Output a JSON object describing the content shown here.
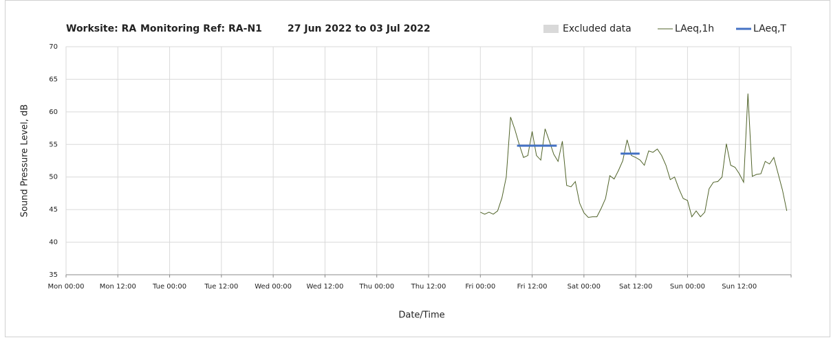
{
  "chart_data": {
    "type": "line",
    "title": [
      "Worksite: RA",
      "Monitoring Ref: RA-N1",
      "27 Jun 2022 to 03 Jul 2022"
    ],
    "x_label": "Date/Time",
    "y_label": "Sound Pressure Level, dB",
    "xlim": [
      0,
      168
    ],
    "xticks": [
      {
        "value": 0,
        "label": "Mon 00:00"
      },
      {
        "value": 12,
        "label": "Mon 12:00"
      },
      {
        "value": 24,
        "label": "Tue 00:00"
      },
      {
        "value": 36,
        "label": "Tue 12:00"
      },
      {
        "value": 48,
        "label": "Wed 00:00"
      },
      {
        "value": 60,
        "label": "Wed 12:00"
      },
      {
        "value": 72,
        "label": "Thu 00:00"
      },
      {
        "value": 84,
        "label": "Thu 12:00"
      },
      {
        "value": 96,
        "label": "Fri 00:00"
      },
      {
        "value": 108,
        "label": "Fri 12:00"
      },
      {
        "value": 120,
        "label": "Sat 00:00"
      },
      {
        "value": 132,
        "label": "Sat 12:00"
      },
      {
        "value": 144,
        "label": "Sun 00:00"
      },
      {
        "value": 156,
        "label": "Sun 12:00"
      }
    ],
    "ylim": [
      35,
      70
    ],
    "yticks": [
      35,
      40,
      45,
      50,
      55,
      60,
      65,
      70
    ],
    "grid": true,
    "excluded_data": {
      "name": "Excluded data",
      "color": "#d9d9d9"
    },
    "series": [
      {
        "name": "LAeq,1h",
        "color": "#4f6228",
        "x": [
          96,
          97,
          98,
          99,
          100,
          101,
          102,
          103,
          104,
          105,
          106,
          107,
          108,
          109,
          110,
          111,
          112,
          113,
          114,
          115,
          116,
          117,
          118,
          119,
          120,
          121,
          122,
          123,
          124,
          125,
          126,
          127,
          128,
          129,
          130,
          131,
          132,
          133,
          134,
          135,
          136,
          137,
          138,
          139,
          140,
          141,
          142,
          143,
          144,
          145,
          146,
          147,
          148,
          149,
          150,
          151,
          152,
          153,
          154,
          155,
          156,
          157,
          158,
          159,
          160,
          161,
          162,
          163,
          164,
          165,
          166,
          167
        ],
        "values": [
          44.6,
          44.3,
          44.6,
          44.3,
          44.8,
          46.8,
          50,
          59.2,
          57.3,
          55,
          53,
          53.3,
          57,
          53.3,
          52.6,
          57.4,
          55.5,
          53.5,
          52.4,
          55.5,
          48.7,
          48.5,
          49.3,
          46,
          44.5,
          43.8,
          43.9,
          43.9,
          45.2,
          46.7,
          50.2,
          49.7,
          51,
          52.5,
          55.7,
          53.3,
          53,
          52.6,
          51.8,
          54,
          53.8,
          54.3,
          53.3,
          51.8,
          49.6,
          50,
          48.2,
          46.7,
          46.4,
          43.9,
          44.8,
          43.9,
          44.6,
          48.2,
          49.2,
          49.3,
          50,
          55.1,
          51.8,
          51.5,
          50.5,
          49.2,
          62.8,
          50.1,
          50.4,
          50.5,
          52.4,
          52,
          53,
          50.5,
          48,
          44.8
        ]
      },
      {
        "name": "LAeq,T",
        "color": "#4472c4",
        "segments": [
          {
            "x0": 104.5,
            "x1": 113.7,
            "value": 54.8
          },
          {
            "x0": 128.5,
            "x1": 132.9,
            "value": 53.6
          }
        ]
      }
    ]
  }
}
